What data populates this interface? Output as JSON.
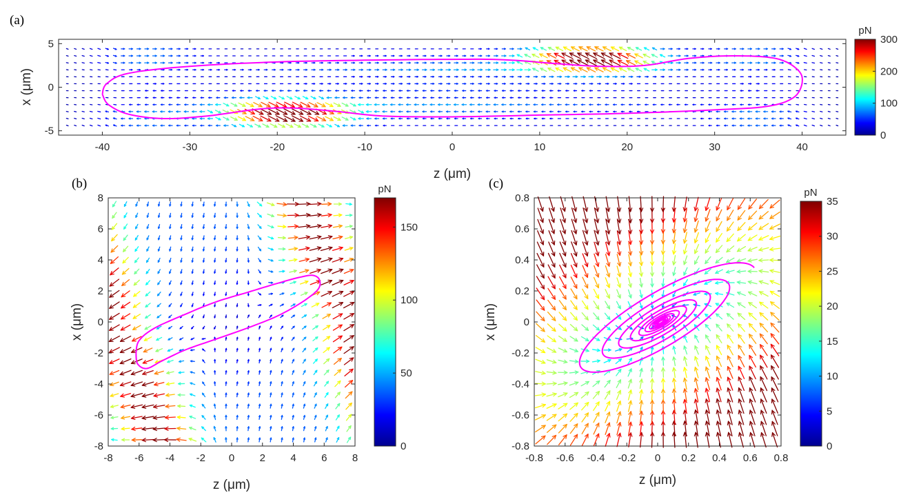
{
  "colormap": [
    "#00008f",
    "#0000ff",
    "#0080ff",
    "#00ffff",
    "#80ff80",
    "#ffff00",
    "#ff8000",
    "#ff0000",
    "#800000"
  ],
  "curve_color": "#ff00ff",
  "chart_data": [
    {
      "id": "a",
      "type": "quiver",
      "panel_label": "(a)",
      "xlabel": "z (μm)",
      "ylabel": "x (μm)",
      "xlim": [
        -45,
        45
      ],
      "ylim": [
        -5.5,
        5.5
      ],
      "xticks": [
        "-40",
        "-30",
        "-20",
        "-10",
        "0",
        "10",
        "20",
        "30",
        "40"
      ],
      "xtick_values": [
        -40,
        -30,
        -20,
        -10,
        0,
        10,
        20,
        30,
        40
      ],
      "yticks": [
        "-5",
        "0",
        "5"
      ],
      "ytick_values": [
        -5,
        0,
        5
      ],
      "colorbar": {
        "unit": "pN",
        "ticks": [
          "0",
          "100",
          "200",
          "300"
        ],
        "tick_values": [
          0,
          100,
          200,
          300
        ],
        "max": 300
      },
      "field": {
        "model": "two-lobe stretched trap",
        "max_force": 300
      },
      "curve": {
        "description": "closed trajectory, elongated loop",
        "points": [
          [
            -40,
            -0.8
          ],
          [
            -39.5,
            0.4
          ],
          [
            -37,
            1.6
          ],
          [
            -30,
            2.4
          ],
          [
            -20,
            2.9
          ],
          [
            -10,
            3.1
          ],
          [
            0,
            3.2
          ],
          [
            6,
            3.15
          ],
          [
            12,
            2.7
          ],
          [
            17,
            2.4
          ],
          [
            22,
            2.5
          ],
          [
            27,
            3.3
          ],
          [
            32,
            3.6
          ],
          [
            37,
            3.3
          ],
          [
            39.5,
            2.0
          ],
          [
            40,
            0.5
          ],
          [
            39,
            -1.2
          ],
          [
            36,
            -2.2
          ],
          [
            30,
            -2.6
          ],
          [
            20,
            -3.0
          ],
          [
            10,
            -3.2
          ],
          [
            0,
            -3.4
          ],
          [
            -8,
            -3.3
          ],
          [
            -13,
            -2.8
          ],
          [
            -18,
            -2.4
          ],
          [
            -22,
            -2.5
          ],
          [
            -28,
            -3.3
          ],
          [
            -33,
            -3.6
          ],
          [
            -37,
            -3.1
          ],
          [
            -39.3,
            -2.0
          ],
          [
            -40,
            -0.8
          ]
        ]
      }
    },
    {
      "id": "b",
      "type": "quiver",
      "panel_label": "(b)",
      "xlabel": "z (μm)",
      "ylabel": "x (μm)",
      "xlim": [
        -8,
        8
      ],
      "ylim": [
        -8,
        8
      ],
      "xticks": [
        "-8",
        "-6",
        "-4",
        "-2",
        "0",
        "2",
        "4",
        "6",
        "8"
      ],
      "xtick_values": [
        -8,
        -6,
        -4,
        -2,
        0,
        2,
        4,
        6,
        8
      ],
      "yticks": [
        "-8",
        "-6",
        "-4",
        "-2",
        "0",
        "2",
        "4",
        "6",
        "8"
      ],
      "ytick_values": [
        -8,
        -6,
        -4,
        -2,
        0,
        2,
        4,
        6,
        8
      ],
      "colorbar": {
        "unit": "pN",
        "ticks": [
          "0",
          "50",
          "100",
          "150"
        ],
        "tick_values": [
          0,
          50,
          100,
          150
        ],
        "max": 170
      },
      "field": {
        "model": "tilted saddle",
        "max_force": 170
      },
      "curve": {
        "description": "closed tilted elongated loop",
        "points": [
          [
            -6.2,
            -2.0
          ],
          [
            -6.0,
            -1.2
          ],
          [
            -5.0,
            -0.4
          ],
          [
            -3.0,
            0.5
          ],
          [
            -1.0,
            1.3
          ],
          [
            1.0,
            1.9
          ],
          [
            3.0,
            2.5
          ],
          [
            4.5,
            2.9
          ],
          [
            5.3,
            3.0
          ],
          [
            5.7,
            2.7
          ],
          [
            5.6,
            2.1
          ],
          [
            4.6,
            1.3
          ],
          [
            3.0,
            0.4
          ],
          [
            1.0,
            -0.4
          ],
          [
            -1.0,
            -1.1
          ],
          [
            -3.0,
            -1.8
          ],
          [
            -4.5,
            -2.5
          ],
          [
            -5.5,
            -3.0
          ],
          [
            -6.1,
            -2.7
          ],
          [
            -6.2,
            -2.0
          ]
        ]
      }
    },
    {
      "id": "c",
      "type": "quiver",
      "panel_label": "(c)",
      "xlabel": "z (μm)",
      "ylabel": "x (μm)",
      "xlim": [
        -0.8,
        0.8
      ],
      "ylim": [
        -0.8,
        0.8
      ],
      "xticks": [
        "-0.8",
        "-0.6",
        "-0.4",
        "-0.2",
        "0",
        "0.2",
        "0.4",
        "0.6",
        "0.8"
      ],
      "xtick_values": [
        -0.8,
        -0.6,
        -0.4,
        -0.2,
        0,
        0.2,
        0.4,
        0.6,
        0.8
      ],
      "yticks": [
        "-0.8",
        "-0.6",
        "-0.4",
        "-0.2",
        "0",
        "0.2",
        "0.4",
        "0.6",
        "0.8"
      ],
      "ytick_values": [
        -0.8,
        -0.6,
        -0.4,
        -0.2,
        0,
        0.2,
        0.4,
        0.6,
        0.8
      ],
      "colorbar": {
        "unit": "pN",
        "ticks": [
          "0",
          "5",
          "10",
          "15",
          "20",
          "25",
          "30",
          "35"
        ],
        "tick_values": [
          0,
          5,
          10,
          15,
          20,
          25,
          30,
          35
        ],
        "max": 35
      },
      "field": {
        "model": "tilted focus with rotation",
        "max_force": 35
      },
      "curve": {
        "description": "inward spiral toward origin, tilted ellipses",
        "ellipse_tilt_deg": 30,
        "semi_major_start": 0.7,
        "semi_minor_start": 0.2,
        "center": [
          0.02,
          0.0
        ],
        "turns": 11
      }
    }
  ]
}
